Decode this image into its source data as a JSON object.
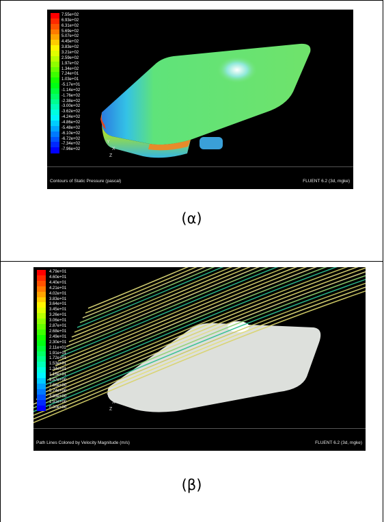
{
  "figures": [
    {
      "caption": "(α)",
      "footer_left": "Contours of Static Pressure (pascal)",
      "footer_right": "FLUENT 6.2 (3d, mgke)",
      "legend": [
        "7.55e+02",
        "6.93e+02",
        "6.31e+02",
        "5.69e+02",
        "5.07e+02",
        "4.45e+02",
        "3.83e+02",
        "3.21e+02",
        "2.59e+02",
        "1.97e+02",
        "1.34e+02",
        "7.24e+01",
        "1.03e+01",
        "-5.17e+01",
        "-1.14e+02",
        "-1.76e+02",
        "-2.38e+02",
        "-3.00e+02",
        "-3.62e+02",
        "-4.24e+02",
        "-4.86e+02",
        "-5.48e+02",
        "-6.10e+02",
        "-6.72e+02",
        "-7.34e+02",
        "-7.96e+02"
      ],
      "axes": [
        "Y",
        "X",
        "Z"
      ]
    },
    {
      "caption": "(β)",
      "footer_left": "Path Lines Colored by Velocity Magnitude (m/s)",
      "footer_right": "FLUENT 6.2 (3d, mgke)",
      "legend": [
        "4.79e+01",
        "4.60e+01",
        "4.40e+01",
        "4.21e+01",
        "4.02e+01",
        "3.83e+01",
        "3.64e+01",
        "3.45e+01",
        "3.26e+01",
        "3.06e+01",
        "2.87e+01",
        "2.68e+01",
        "2.49e+01",
        "2.30e+01",
        "2.11e+01",
        "1.91e+01",
        "1.72e+01",
        "1.53e+01",
        "1.34e+01",
        "1.15e+01",
        "9.57e+00",
        "7.66e+00",
        "5.74e+00",
        "3.83e+00",
        "1.91e+00",
        "0.00e+00"
      ],
      "axes": [
        "Y",
        "X",
        "Z"
      ]
    }
  ],
  "colors": {
    "border": "#000000",
    "panel_bg": "#000000",
    "legend_high": "#ff0000",
    "legend_low": "#0000ff"
  }
}
